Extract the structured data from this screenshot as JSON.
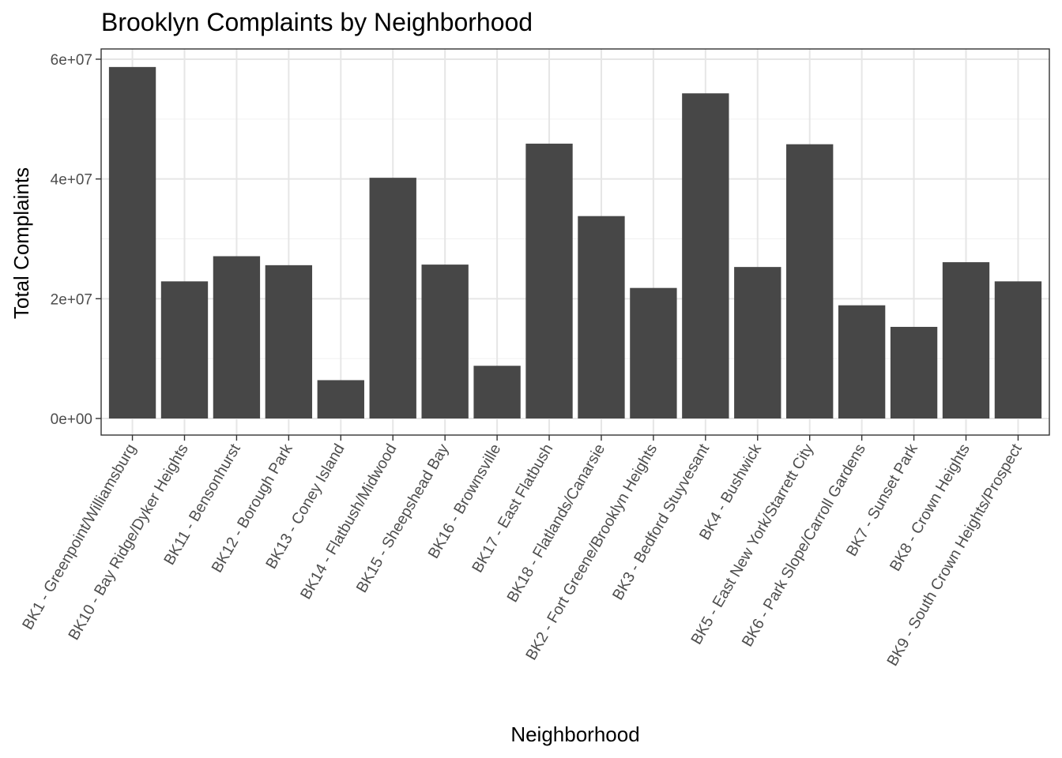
{
  "chart_data": {
    "type": "bar",
    "title": "Brooklyn Complaints by Neighborhood",
    "xlabel": "Neighborhood",
    "ylabel": "Total Complaints",
    "ylim": [
      0,
      60000000
    ],
    "y_ticks": [
      {
        "value": 0,
        "label": "0e+00"
      },
      {
        "value": 20000000,
        "label": "2e+07"
      },
      {
        "value": 40000000,
        "label": "4e+07"
      },
      {
        "value": 60000000,
        "label": "6e+07"
      }
    ],
    "y_minor_ticks": [
      10000000,
      30000000,
      50000000
    ],
    "grid": true,
    "bar_color": "#474747",
    "categories": [
      "BK1 - Greenpoint/Williamsburg",
      "BK10 - Bay Ridge/Dyker Heights",
      "BK11 - Bensonhurst",
      "BK12 - Borough Park",
      "BK13 - Coney Island",
      "BK14 - Flatbush/Midwood",
      "BK15 - Sheepshead Bay",
      "BK16 - Brownsville",
      "BK17 - East Flatbush",
      "BK18 - Flatlands/Canarsie",
      "BK2 - Fort Greene/Brooklyn Heights",
      "BK3 - Bedford Stuyvesant",
      "BK4 - Bushwick",
      "BK5 - East New York/Starrett City",
      "BK6 - Park Slope/Carroll Gardens",
      "BK7 - Sunset Park",
      "BK8 - Crown Heights",
      "BK9 - South Crown Heights/Prospect"
    ],
    "values": [
      58700000,
      22900000,
      27100000,
      25600000,
      6400000,
      40200000,
      25700000,
      8800000,
      45900000,
      33800000,
      21800000,
      54300000,
      25300000,
      45800000,
      18900000,
      15300000,
      26100000,
      22900000
    ]
  }
}
